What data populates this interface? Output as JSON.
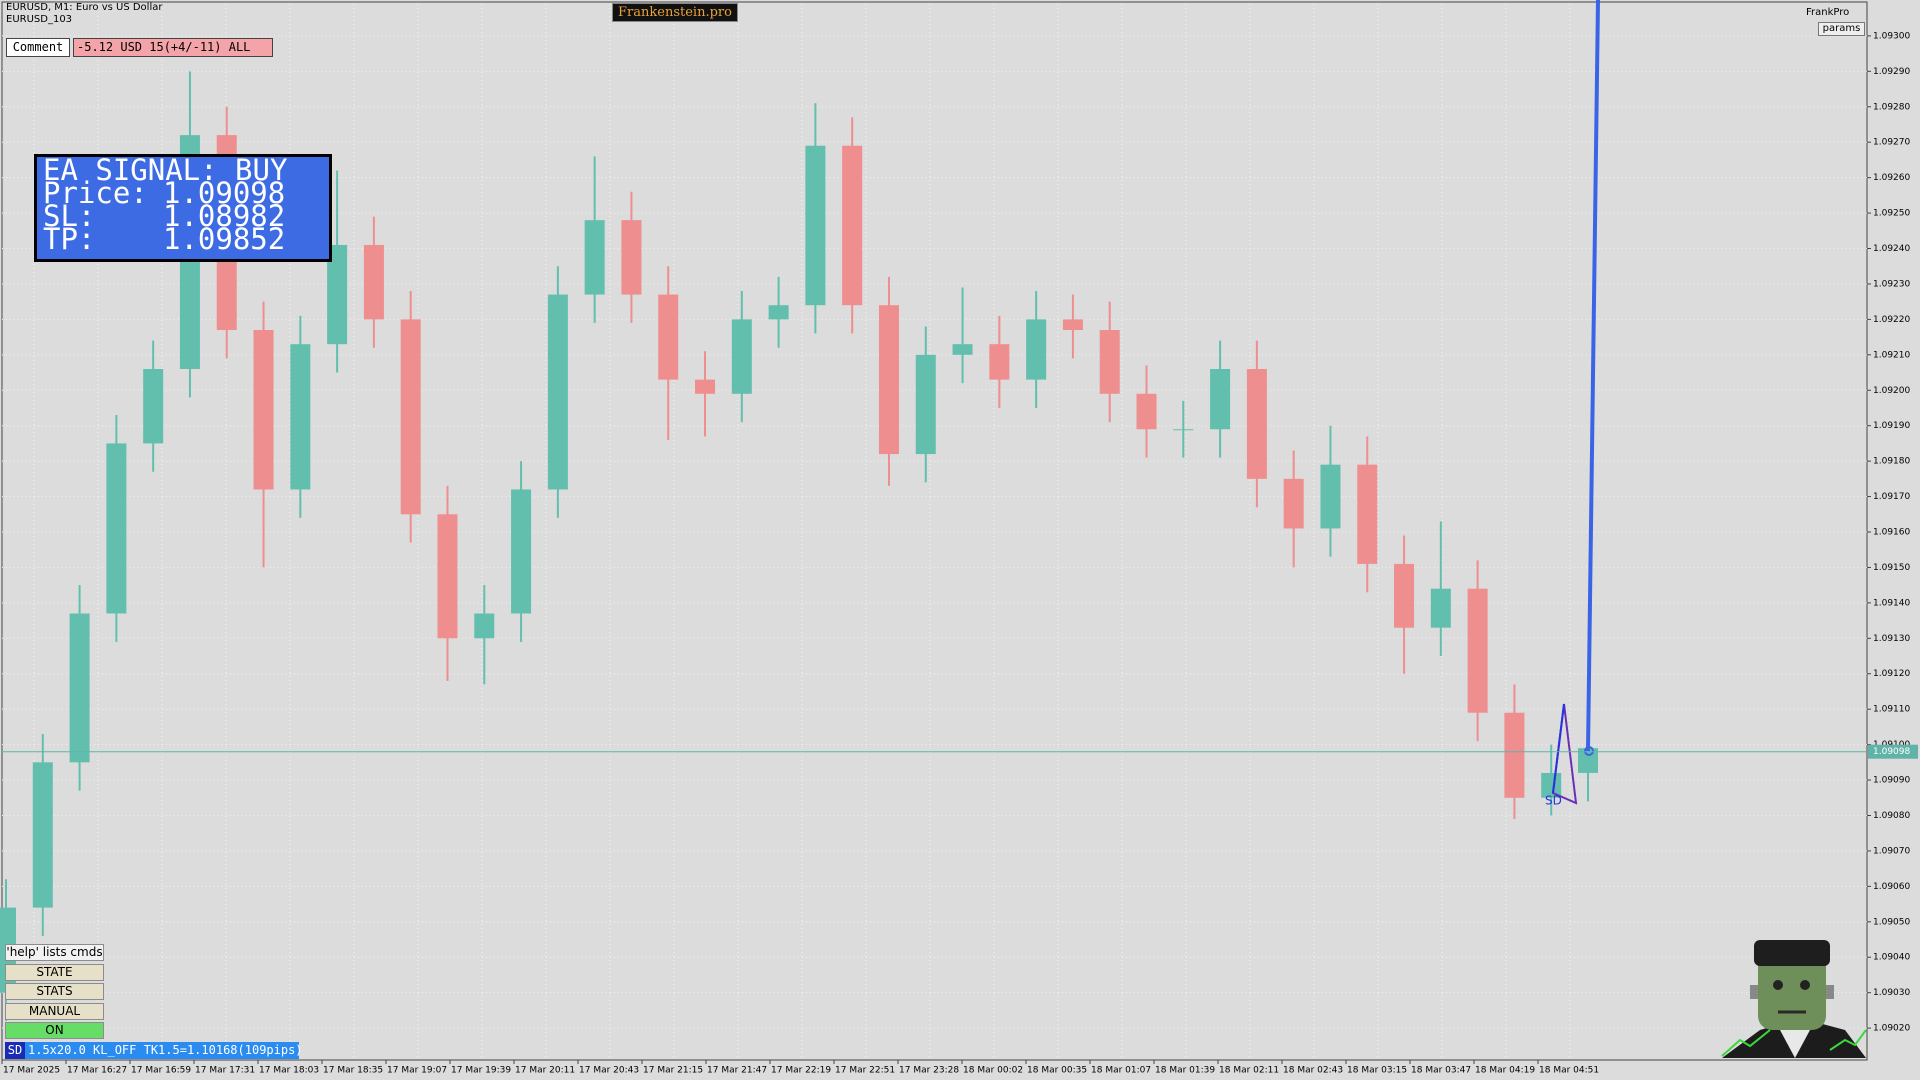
{
  "window": {
    "symbol_line": "EURUSD, M1:  Euro vs US Dollar",
    "account_line": "EURUSD_103",
    "brand": "Frankenstein.pro",
    "brand_right": "FrankPro",
    "params_button": "params"
  },
  "comment": {
    "label": "Comment",
    "text": "-5.12 USD 15(+4/-11) ALL"
  },
  "ea_panel": {
    "title": "EA SIGNAL: BUY",
    "rows": [
      {
        "label": "Price:",
        "value": "1.09098"
      },
      {
        "label": "SL:",
        "value": "1.08982"
      },
      {
        "label": "TP:",
        "value": "1.09852"
      }
    ]
  },
  "buttons": [
    "'help' lists cmds",
    "STATE",
    "STATS",
    "MANUAL",
    "ON"
  ],
  "status_bar": {
    "tag": "SD",
    "text": "1.5x20.0 KL_OFF TK1.5=1.10168(109pips)"
  },
  "pattern_label": "SD",
  "chart_data": {
    "type": "candlestick",
    "grid": true,
    "colors": {
      "up": "#62bfae",
      "down": "#ee8e8e",
      "bid_line": "#5fb3a8"
    },
    "open": [
      1.0903,
      1.09054,
      1.09095,
      1.09137,
      1.09185,
      1.09206,
      1.09272,
      1.09217,
      1.09172,
      1.09213,
      1.09241,
      1.0922,
      1.09165,
      1.0913,
      1.09137,
      1.09172,
      1.09227,
      1.09248,
      1.09227,
      1.09203,
      1.09199,
      1.0922,
      1.09224,
      1.09269,
      1.09224,
      1.09182,
      1.0921,
      1.09213,
      1.09203,
      1.0922,
      1.09217,
      1.09199,
      1.09189,
      1.09189,
      1.09206,
      1.09175,
      1.09161,
      1.09179,
      1.09151,
      1.09133,
      1.09144,
      1.09109,
      1.09085,
      1.09092
    ],
    "high": [
      1.09062,
      1.09103,
      1.09145,
      1.09193,
      1.09214,
      1.0929,
      1.0928,
      1.09225,
      1.09221,
      1.09262,
      1.09249,
      1.09228,
      1.09173,
      1.09145,
      1.0918,
      1.09235,
      1.09266,
      1.09256,
      1.09235,
      1.09211,
      1.09228,
      1.09232,
      1.09281,
      1.09277,
      1.09232,
      1.09218,
      1.09229,
      1.09221,
      1.09228,
      1.09227,
      1.09225,
      1.09207,
      1.09197,
      1.09214,
      1.09214,
      1.09183,
      1.0919,
      1.09187,
      1.09159,
      1.09163,
      1.09152,
      1.09117,
      1.091,
      1.0911
    ],
    "low": [
      1.09022,
      1.09046,
      1.09087,
      1.09129,
      1.09177,
      1.09198,
      1.09209,
      1.0915,
      1.09164,
      1.09205,
      1.09212,
      1.09157,
      1.09118,
      1.09117,
      1.09129,
      1.09164,
      1.09219,
      1.09219,
      1.09186,
      1.09187,
      1.09191,
      1.09212,
      1.09216,
      1.09216,
      1.09173,
      1.09174,
      1.09202,
      1.09195,
      1.09195,
      1.09209,
      1.09191,
      1.09181,
      1.09181,
      1.09181,
      1.09167,
      1.0915,
      1.09153,
      1.09143,
      1.0912,
      1.09125,
      1.09101,
      1.09079,
      1.0908,
      1.09084
    ],
    "close": [
      1.09054,
      1.09095,
      1.09137,
      1.09185,
      1.09206,
      1.09272,
      1.09217,
      1.09172,
      1.09213,
      1.09241,
      1.0922,
      1.09165,
      1.0913,
      1.09137,
      1.09172,
      1.09227,
      1.09248,
      1.09227,
      1.09203,
      1.09199,
      1.0922,
      1.09224,
      1.09269,
      1.09224,
      1.09182,
      1.0921,
      1.09213,
      1.09203,
      1.0922,
      1.09217,
      1.09199,
      1.09189,
      1.09189,
      1.09206,
      1.09175,
      1.09161,
      1.09179,
      1.09151,
      1.09133,
      1.09144,
      1.09109,
      1.09085,
      1.09092,
      1.09099
    ],
    "x_labels": [
      "17 Mar 2025",
      "17 Mar 16:27",
      "17 Mar 16:59",
      "17 Mar 17:31",
      "17 Mar 18:03",
      "17 Mar 18:35",
      "17 Mar 19:07",
      "17 Mar 19:39",
      "17 Mar 20:11",
      "17 Mar 20:43",
      "17 Mar 21:15",
      "17 Mar 21:47",
      "17 Mar 22:19",
      "17 Mar 22:51",
      "17 Mar 23:28",
      "18 Mar 00:02",
      "18 Mar 00:35",
      "18 Mar 01:07",
      "18 Mar 01:39",
      "18 Mar 02:11",
      "18 Mar 02:43",
      "18 Mar 03:15",
      "18 Mar 03:47",
      "18 Mar 04:19",
      "18 Mar 04:51"
    ],
    "ylim": [
      1.09011,
      1.09309
    ],
    "yticks": [
      {
        "value": 1.0902,
        "label": "1.09020"
      },
      {
        "value": 1.0903,
        "label": "1.09030"
      },
      {
        "value": 1.0904,
        "label": "1.09040"
      },
      {
        "value": 1.0905,
        "label": "1.09050"
      },
      {
        "value": 1.0906,
        "label": "1.09060"
      },
      {
        "value": 1.0907,
        "label": "1.09070"
      },
      {
        "value": 1.0908,
        "label": "1.09080"
      },
      {
        "value": 1.0909,
        "label": "1.09090"
      },
      {
        "value": 1.091,
        "label": "1.09100"
      },
      {
        "value": 1.0911,
        "label": "1.09110"
      },
      {
        "value": 1.0912,
        "label": "1.09120"
      },
      {
        "value": 1.0913,
        "label": "1.09130"
      },
      {
        "value": 1.0914,
        "label": "1.09140"
      },
      {
        "value": 1.0915,
        "label": "1.09150"
      },
      {
        "value": 1.0916,
        "label": "1.09160"
      },
      {
        "value": 1.0917,
        "label": "1.09170"
      },
      {
        "value": 1.0918,
        "label": "1.09180"
      },
      {
        "value": 1.0919,
        "label": "1.09190"
      },
      {
        "value": 1.092,
        "label": "1.09200"
      },
      {
        "value": 1.0921,
        "label": "1.09210"
      },
      {
        "value": 1.0922,
        "label": "1.09220"
      },
      {
        "value": 1.0923,
        "label": "1.09230"
      },
      {
        "value": 1.0924,
        "label": "1.09240"
      },
      {
        "value": 1.0925,
        "label": "1.09250"
      },
      {
        "value": 1.0926,
        "label": "1.09260"
      },
      {
        "value": 1.0927,
        "label": "1.09270"
      },
      {
        "value": 1.0928,
        "label": "1.09280"
      },
      {
        "value": 1.0929,
        "label": "1.09290"
      },
      {
        "value": 1.093,
        "label": "1.09300"
      }
    ],
    "bid": {
      "value": 1.09098,
      "label": "1.09098"
    }
  }
}
